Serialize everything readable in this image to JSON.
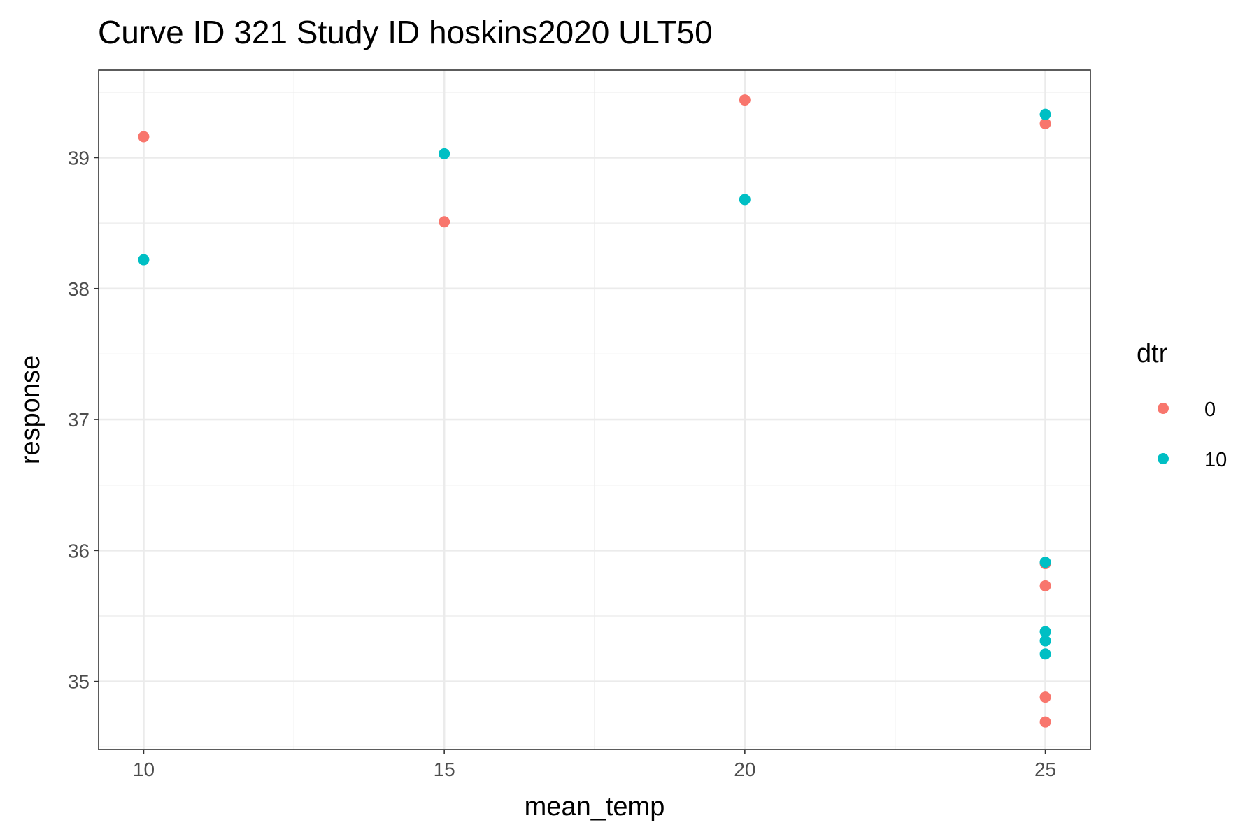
{
  "chart_data": {
    "type": "scatter",
    "title": "Curve ID 321 Study ID hoskins2020 ULT50",
    "xlabel": "mean_temp",
    "ylabel": "response",
    "xlim": [
      9.25,
      25.75
    ],
    "ylim": [
      34.48,
      39.67
    ],
    "x_ticks": [
      10,
      15,
      20,
      25
    ],
    "x_minor_ticks": [
      12.5,
      17.5,
      22.5
    ],
    "y_ticks": [
      35,
      36,
      37,
      38,
      39
    ],
    "y_minor_ticks": [
      34.5,
      35.5,
      36.5,
      37.5,
      38.5,
      39.5
    ],
    "grid": true,
    "legend": {
      "title": "dtr",
      "position": "right"
    },
    "series": [
      {
        "name": "0",
        "color": "#F8766D",
        "points": [
          {
            "x": 10,
            "y": 39.16
          },
          {
            "x": 15,
            "y": 38.51
          },
          {
            "x": 20,
            "y": 39.44
          },
          {
            "x": 25,
            "y": 39.26
          },
          {
            "x": 25,
            "y": 35.9
          },
          {
            "x": 25,
            "y": 35.73
          },
          {
            "x": 25,
            "y": 34.88
          },
          {
            "x": 25,
            "y": 34.69
          }
        ]
      },
      {
        "name": "10",
        "color": "#00BFC4",
        "points": [
          {
            "x": 10,
            "y": 38.22
          },
          {
            "x": 15,
            "y": 39.03
          },
          {
            "x": 20,
            "y": 38.68
          },
          {
            "x": 25,
            "y": 39.33
          },
          {
            "x": 25,
            "y": 35.91
          },
          {
            "x": 25,
            "y": 35.38
          },
          {
            "x": 25,
            "y": 35.31
          },
          {
            "x": 25,
            "y": 35.21
          }
        ]
      }
    ]
  }
}
